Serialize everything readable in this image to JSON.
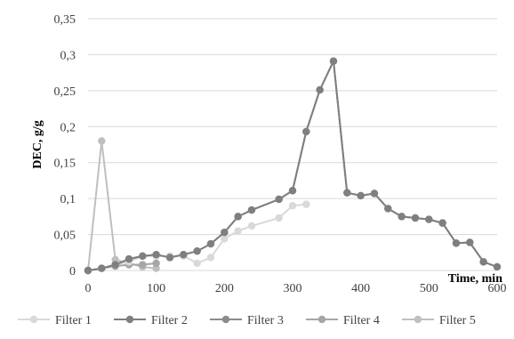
{
  "chart_data": {
    "type": "line",
    "xlabel": "Time, min",
    "ylabel": "DEC, g/g",
    "xlim": [
      0,
      600
    ],
    "ylim": [
      0,
      0.35
    ],
    "x_ticks": [
      "0",
      "100",
      "200",
      "300",
      "400",
      "500",
      "600"
    ],
    "y_ticks": [
      "0",
      "0,05",
      "0,1",
      "0,15",
      "0,2",
      "0,25",
      "0,3",
      "0,35"
    ],
    "grid": "horizontal",
    "legend_position": "bottom",
    "series": [
      {
        "name": "Filter 1",
        "color": "#d9d9d9",
        "x": [
          0,
          20,
          40,
          60,
          80,
          100,
          120,
          140,
          160,
          180,
          200,
          220,
          240,
          280,
          300,
          320
        ],
        "y": [
          0,
          0.003,
          0.008,
          0.012,
          0.02,
          0.02,
          0.02,
          0.02,
          0.01,
          0.018,
          0.044,
          0.055,
          0.062,
          0.073,
          0.09,
          0.092
        ]
      },
      {
        "name": "Filter 2",
        "color": "#7f7f7f",
        "x": [
          0,
          20,
          40,
          60,
          80,
          100,
          120,
          140,
          160,
          180,
          200,
          220,
          240,
          280,
          300,
          320,
          340,
          360,
          380,
          400,
          420,
          440,
          460,
          480,
          500,
          520,
          540,
          560,
          580,
          600
        ],
        "y": [
          0,
          0.003,
          0.008,
          0.016,
          0.02,
          0.022,
          0.018,
          0.022,
          0.027,
          0.037,
          0.053,
          0.075,
          0.084,
          0.099,
          0.111,
          0.193,
          0.251,
          0.291,
          0.108,
          0.104,
          0.107,
          0.086,
          0.075,
          0.073,
          0.071,
          0.066,
          0.038,
          0.039,
          0.012,
          0.005
        ]
      },
      {
        "name": "Filter 3",
        "color": "#8c8c8c",
        "x": [
          0,
          20,
          40,
          60,
          80,
          100,
          120,
          140,
          160,
          180,
          200,
          220,
          240,
          280,
          300,
          320,
          340,
          360,
          380,
          400,
          420,
          440,
          460,
          480,
          500,
          520,
          540,
          560,
          580,
          600
        ],
        "y": [
          0,
          0.003,
          0.008,
          0.016,
          0.02,
          0.022,
          0.018,
          0.022,
          0.027,
          0.037,
          0.053,
          0.075,
          0.084,
          0.099,
          0.111,
          0.193,
          0.251,
          0.291,
          0.108,
          0.104,
          0.107,
          0.086,
          0.075,
          0.073,
          0.071,
          0.066,
          0.038,
          0.039,
          0.012,
          0.005
        ]
      },
      {
        "name": "Filter 4",
        "color": "#a6a6a6",
        "x": [
          0,
          20,
          40,
          60,
          80,
          100
        ],
        "y": [
          0,
          0.003,
          0.006,
          0.008,
          0.008,
          0.01
        ]
      },
      {
        "name": "Filter 5",
        "color": "#bfbfbf",
        "x": [
          0,
          20,
          40,
          60,
          80,
          100
        ],
        "y": [
          0,
          0.18,
          0.015,
          0.01,
          0.005,
          0.003
        ]
      }
    ]
  }
}
